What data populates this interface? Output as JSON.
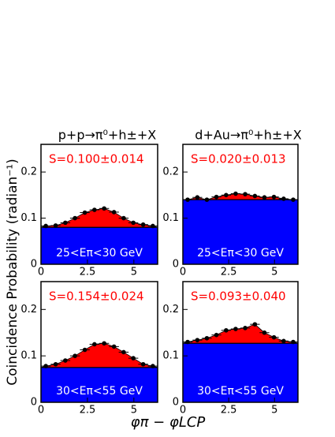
{
  "figure": {
    "ylabel": "Coincidence Probability (radian⁻¹)",
    "xlabel": "φπ − φLCP"
  },
  "chart_data": [
    {
      "type": "scatter",
      "title": "p+p→π⁰+h±+X",
      "annotation": "S=0.100±0.014",
      "label": "25<Eπ<30 GeV",
      "x": [
        0.26,
        0.79,
        1.31,
        1.83,
        2.36,
        2.88,
        3.4,
        3.93,
        4.45,
        4.97,
        5.5,
        6.02
      ],
      "values": [
        0.083,
        0.084,
        0.09,
        0.1,
        0.112,
        0.118,
        0.121,
        0.113,
        0.1,
        0.09,
        0.086,
        0.083
      ],
      "pedestal": 0.08,
      "color": "#000000",
      "signal_color": "#ff0000",
      "pedestal_color": "#0000ff",
      "annotation_color": "#ff0000",
      "xlim": [
        0,
        6.28
      ],
      "ylim": [
        0,
        0.26
      ],
      "xticks": [
        0,
        2.5,
        5
      ],
      "yticks": [
        0,
        0.1,
        0.2
      ]
    },
    {
      "type": "scatter",
      "title": "d+Au→π⁰+h±+X",
      "annotation": "S=0.020±0.013",
      "label": "25<Eπ<30 GeV",
      "x": [
        0.26,
        0.79,
        1.31,
        1.83,
        2.36,
        2.88,
        3.4,
        3.93,
        4.45,
        4.97,
        5.5,
        6.02
      ],
      "values": [
        0.14,
        0.145,
        0.14,
        0.146,
        0.15,
        0.153,
        0.152,
        0.148,
        0.145,
        0.146,
        0.142,
        0.14
      ],
      "pedestal": 0.14,
      "color": "#000000",
      "signal_color": "#ff0000",
      "pedestal_color": "#0000ff",
      "annotation_color": "#ff0000",
      "xlim": [
        0,
        6.28
      ],
      "ylim": [
        0,
        0.26
      ],
      "xticks": [
        0,
        2.5,
        5
      ],
      "yticks": [
        0,
        0.1,
        0.2
      ]
    },
    {
      "type": "scatter",
      "annotation": "S=0.154±0.024",
      "label": "30<Eπ<55 GeV",
      "x": [
        0.26,
        0.79,
        1.31,
        1.83,
        2.36,
        2.88,
        3.4,
        3.93,
        4.45,
        4.97,
        5.5,
        6.02
      ],
      "values": [
        0.078,
        0.082,
        0.09,
        0.1,
        0.113,
        0.125,
        0.127,
        0.12,
        0.108,
        0.095,
        0.082,
        0.078
      ],
      "pedestal": 0.075,
      "color": "#000000",
      "signal_color": "#ff0000",
      "pedestal_color": "#0000ff",
      "annotation_color": "#ff0000",
      "xlim": [
        0,
        6.28
      ],
      "ylim": [
        0,
        0.26
      ],
      "xticks": [
        0,
        2.5,
        5
      ],
      "yticks": [
        0,
        0.1,
        0.2
      ]
    },
    {
      "type": "scatter",
      "annotation": "S=0.093±0.040",
      "label": "30<Eπ<55 GeV",
      "x": [
        0.26,
        0.79,
        1.31,
        1.83,
        2.36,
        2.88,
        3.4,
        3.93,
        4.45,
        4.97,
        5.5,
        6.02
      ],
      "values": [
        0.13,
        0.134,
        0.138,
        0.145,
        0.155,
        0.158,
        0.16,
        0.168,
        0.15,
        0.14,
        0.132,
        0.13
      ],
      "pedestal": 0.127,
      "color": "#000000",
      "signal_color": "#ff0000",
      "pedestal_color": "#0000ff",
      "annotation_color": "#ff0000",
      "xlim": [
        0,
        6.28
      ],
      "ylim": [
        0,
        0.26
      ],
      "xticks": [
        0,
        2.5,
        5
      ],
      "yticks": [
        0,
        0.1,
        0.2
      ]
    }
  ]
}
